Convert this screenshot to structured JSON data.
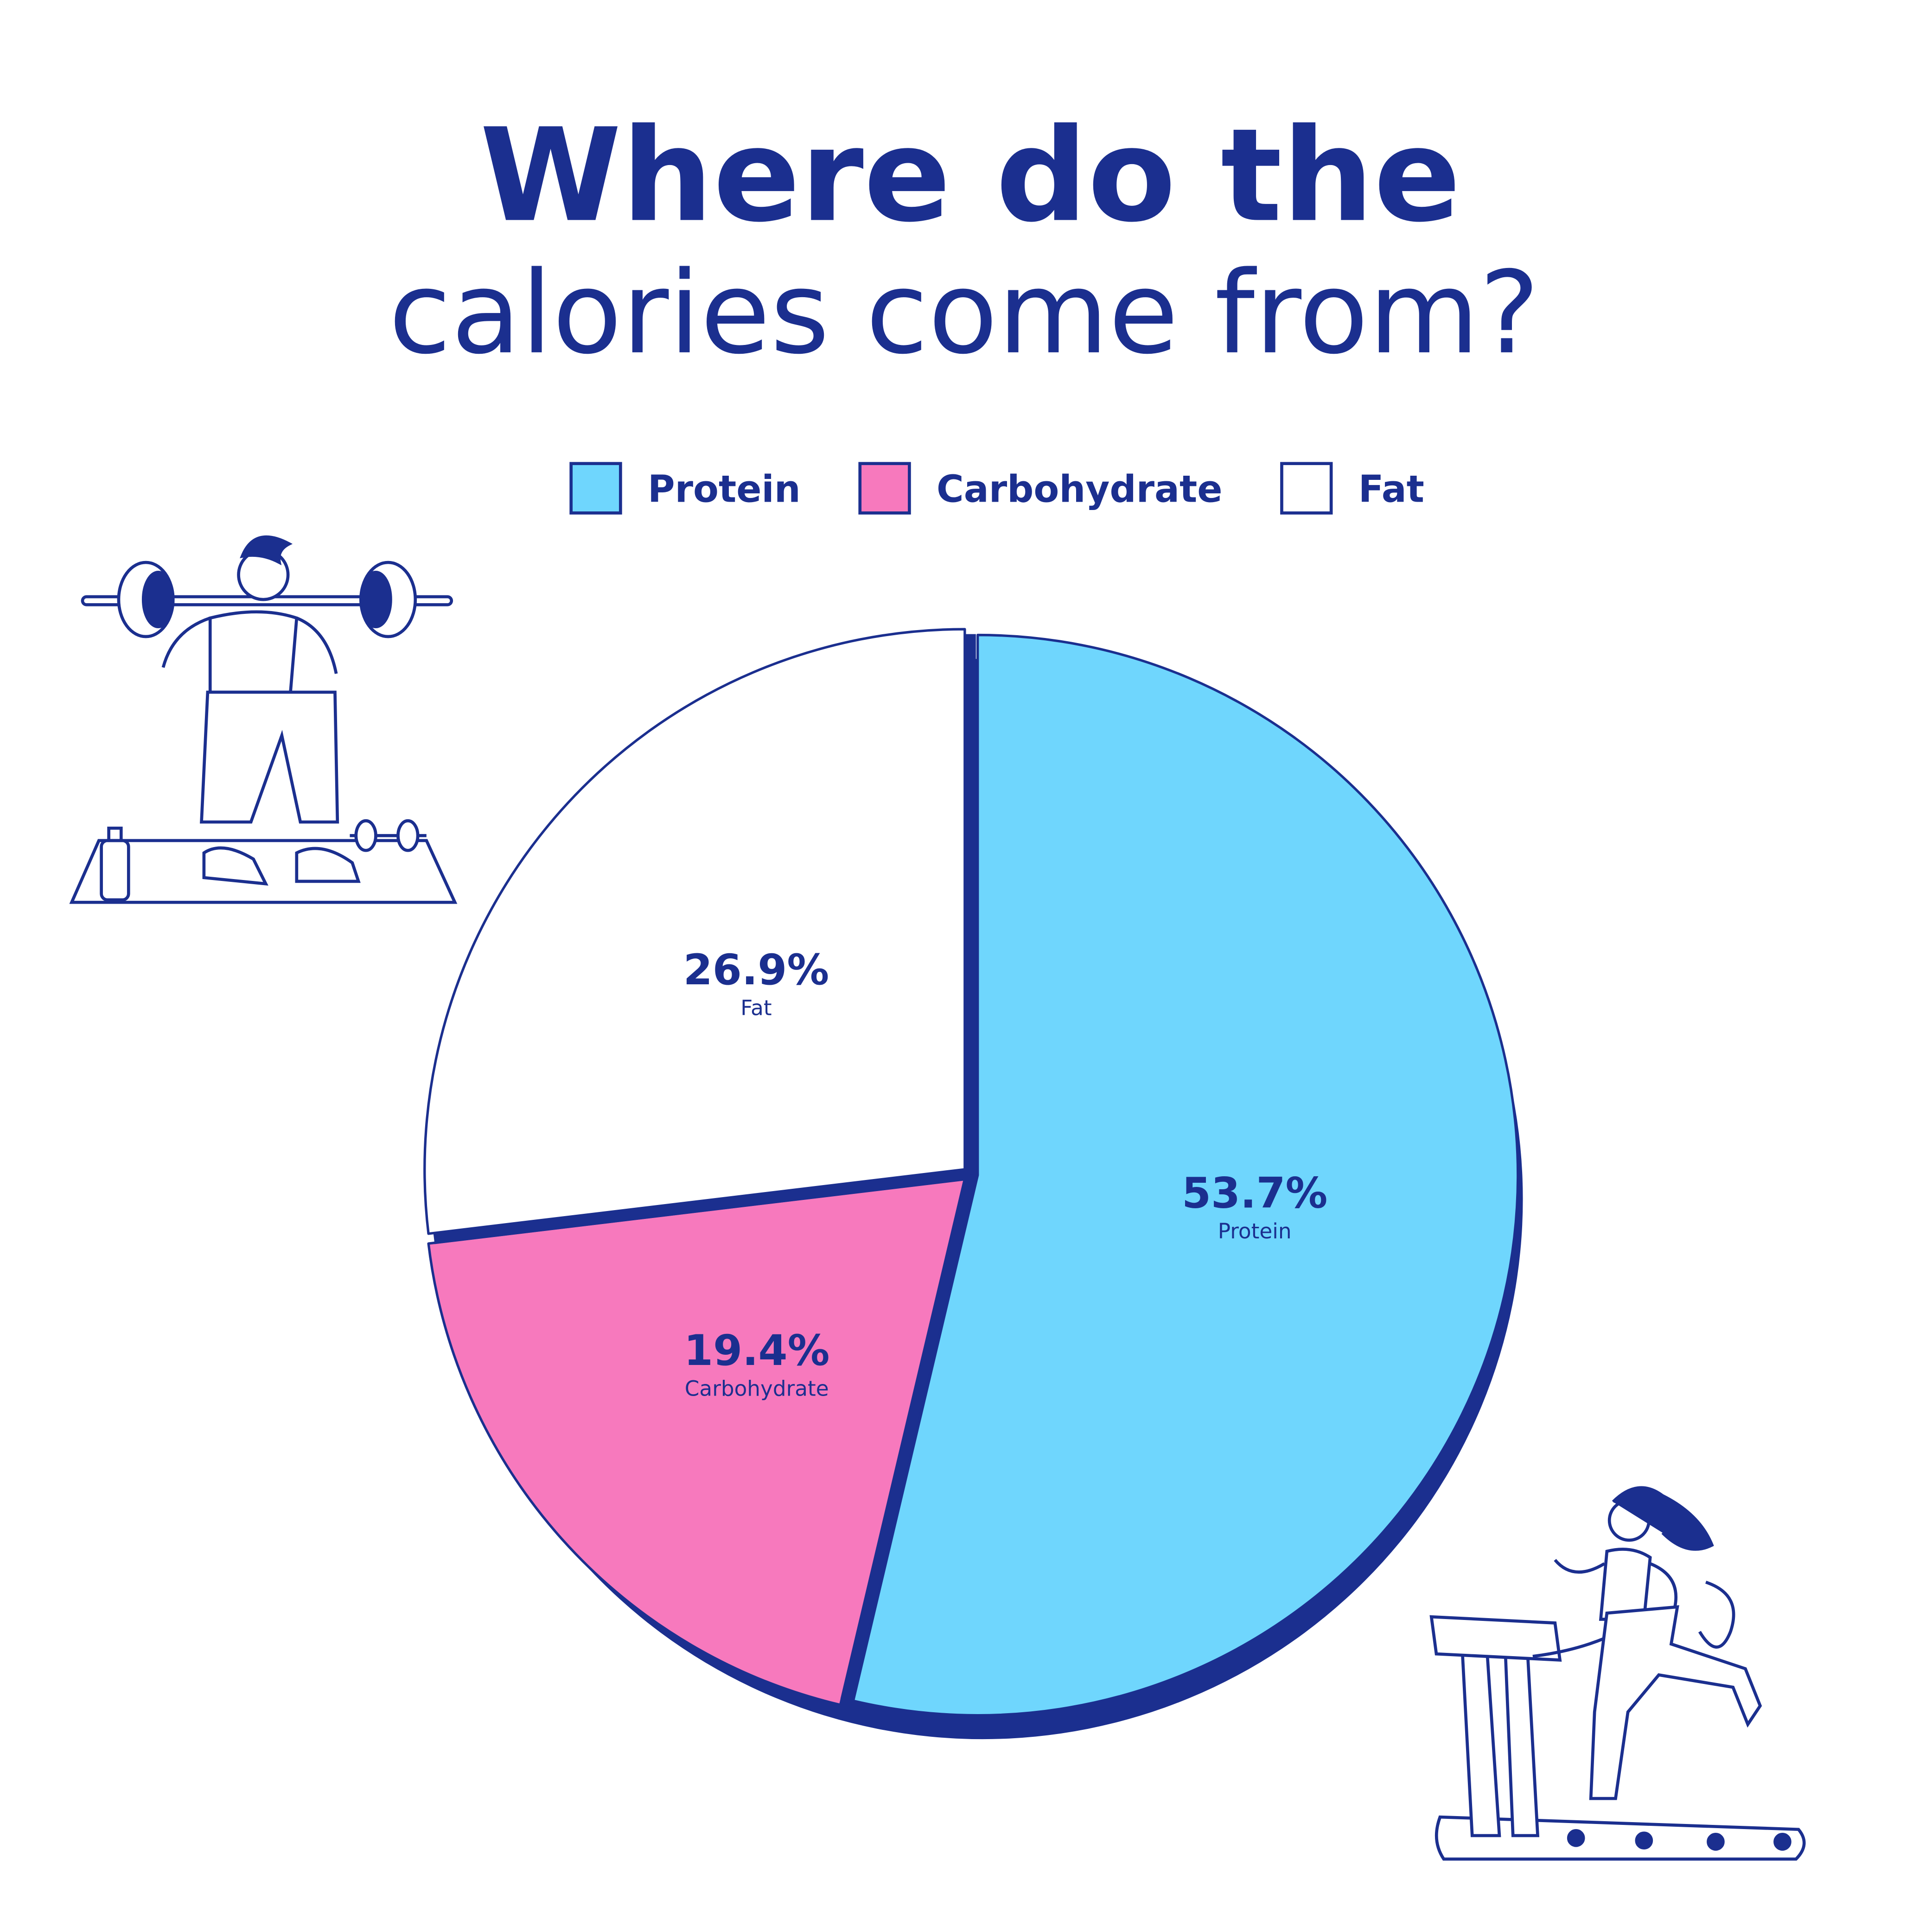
{
  "chart_data": {
    "type": "pie",
    "title": "Where do the",
    "subtitle": "calories come from?",
    "categories": [
      "Protein",
      "Carbohydrate",
      "Fat"
    ],
    "values": [
      53.7,
      19.4,
      26.9
    ],
    "value_labels": [
      "53.7%",
      "19.4%",
      "26.9%"
    ],
    "colors": [
      "#6fd6fd",
      "#f779bd",
      "#ffffff"
    ],
    "start_angle": 0,
    "direction": "clockwise"
  }
}
